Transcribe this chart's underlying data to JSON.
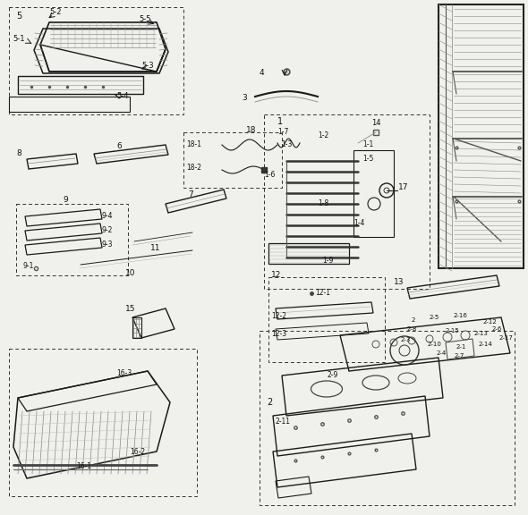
{
  "bg_color": "#f0f0ec",
  "line_color": "#1a1a1a",
  "dash_color": "#333333",
  "label_color": "#111111",
  "fig_w": 5.9,
  "fig_h": 5.76,
  "dpi": 100
}
